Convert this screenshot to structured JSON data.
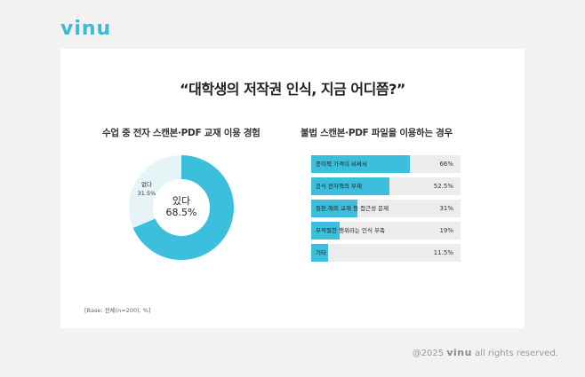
{
  "brand": {
    "logo": "vinu",
    "accent": "#3bbfdd"
  },
  "card": {
    "title": "“대학생의 저작권 인식, 지금 어디쯤?”",
    "base_note": "[Base: 전체(n=200), %]"
  },
  "footer": {
    "prefix": "@2025",
    "logo": "vinu",
    "suffix": "all rights reserved."
  },
  "chart_data": [
    {
      "type": "pie",
      "title": "수업 중 전자 스캔본·PDF 교재 이용 경험",
      "categories": [
        "있다",
        "없다"
      ],
      "values": [
        68.5,
        31.5
      ],
      "labels": [
        "68.5%",
        "31.5%"
      ],
      "colors": [
        "#3bbfdd",
        "#e6f4f8"
      ],
      "donut": true
    },
    {
      "type": "bar",
      "orientation": "horizontal",
      "title": "불법 스캔본·PDF 파일을 이용하는 경우",
      "categories": [
        "종이책 가격이 비싸서",
        "공식 전자책의 부재",
        "절판,해외 교재 등 접근성 문제",
        "부적절한 행위라는 인식 부족",
        "기타"
      ],
      "values": [
        66,
        52.5,
        31,
        19,
        11.5
      ],
      "labels": [
        "66%",
        "52.5%",
        "31%",
        "19%",
        "11.5%"
      ],
      "xlim": [
        0,
        100
      ],
      "color": "#3bbfdd"
    }
  ]
}
